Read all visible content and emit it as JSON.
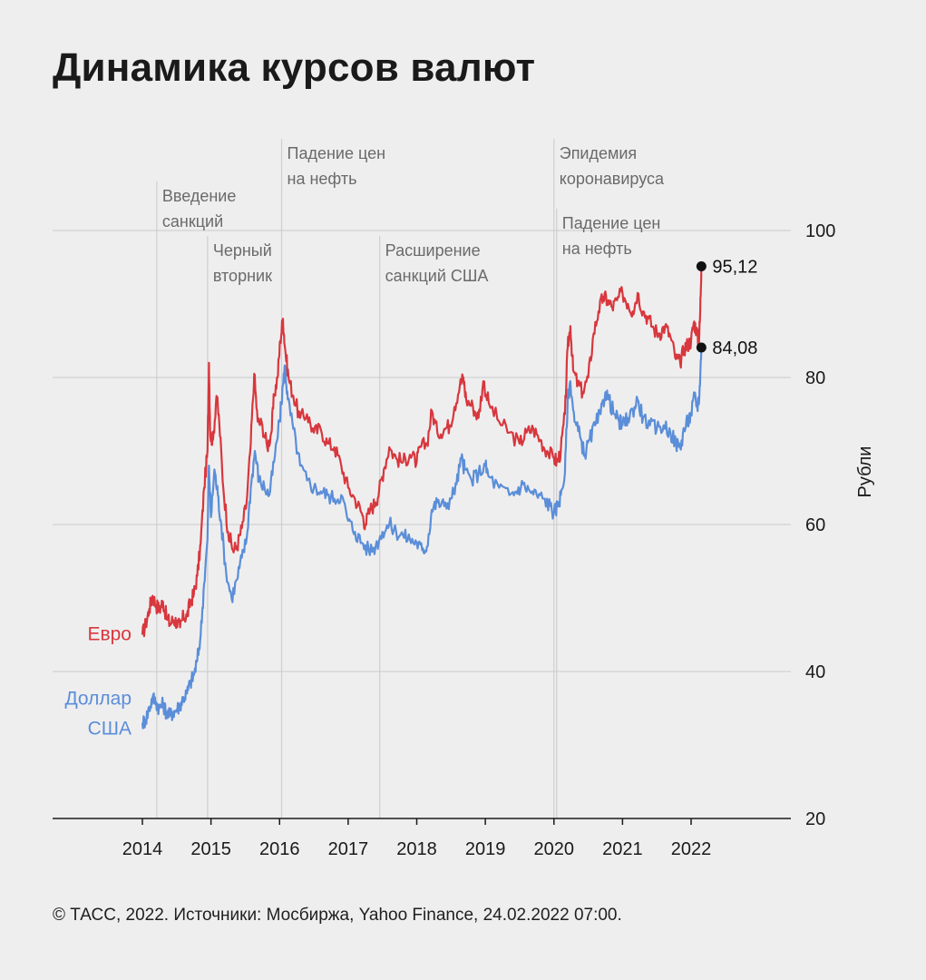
{
  "title": "Динамика курсов валют",
  "footer": "© ТАСС, 2022. Источники: Мосбиржа, Yahoo Finance, 24.02.2022 07:00.",
  "colors": {
    "euro": "#d7373d",
    "usd": "#5a8ed8",
    "grid": "#c9c9c9",
    "axis": "#1a1a1a",
    "event": "#cfcfcf",
    "event_text": "#6a6a6a",
    "background": "#efeeef"
  },
  "chart_data": {
    "type": "line",
    "title": "Динамика курсов валют",
    "ylabel": "Рубли",
    "xlabel": "",
    "ylim": [
      20,
      100
    ],
    "yticks": [
      20,
      40,
      60,
      80,
      100
    ],
    "xlim": [
      2013.0,
      2023.2
    ],
    "xticks": [
      {
        "value": 2014,
        "label": "2014"
      },
      {
        "value": 2015,
        "label": "2015"
      },
      {
        "value": 2016,
        "label": "2016"
      },
      {
        "value": 2017,
        "label": "2017"
      },
      {
        "value": 2018,
        "label": "2018"
      },
      {
        "value": 2019,
        "label": "2019"
      },
      {
        "value": 2020,
        "label": "2020"
      },
      {
        "value": 2021,
        "label": "2021"
      },
      {
        "value": 2022,
        "label": "2022"
      }
    ],
    "grid": true,
    "series": [
      {
        "name": "Евро",
        "color_key": "euro",
        "label_lines": [
          "Евро"
        ],
        "end_value": 95.12,
        "end_label": "95,12",
        "points": [
          [
            2014.0,
            45.0
          ],
          [
            2014.05,
            46.5
          ],
          [
            2014.1,
            48.5
          ],
          [
            2014.15,
            50.3
          ],
          [
            2014.2,
            49.0
          ],
          [
            2014.25,
            48.5
          ],
          [
            2014.3,
            49.5
          ],
          [
            2014.35,
            47.5
          ],
          [
            2014.4,
            46.5
          ],
          [
            2014.45,
            47.0
          ],
          [
            2014.5,
            46.8
          ],
          [
            2014.55,
            46.0
          ],
          [
            2014.6,
            47.5
          ],
          [
            2014.65,
            47.5
          ],
          [
            2014.7,
            49.5
          ],
          [
            2014.75,
            50.5
          ],
          [
            2014.8,
            53.0
          ],
          [
            2014.85,
            57.5
          ],
          [
            2014.9,
            65.0
          ],
          [
            2014.95,
            70.0
          ],
          [
            2014.97,
            82.0
          ],
          [
            2014.99,
            72.0
          ],
          [
            2015.03,
            71.5
          ],
          [
            2015.08,
            77.5
          ],
          [
            2015.12,
            74.0
          ],
          [
            2015.18,
            65.0
          ],
          [
            2015.25,
            59.0
          ],
          [
            2015.32,
            56.5
          ],
          [
            2015.38,
            57.0
          ],
          [
            2015.45,
            59.5
          ],
          [
            2015.52,
            63.0
          ],
          [
            2015.58,
            71.0
          ],
          [
            2015.63,
            80.5
          ],
          [
            2015.68,
            74.0
          ],
          [
            2015.75,
            73.5
          ],
          [
            2015.82,
            70.5
          ],
          [
            2015.88,
            72.5
          ],
          [
            2015.92,
            77.5
          ],
          [
            2015.97,
            80.0
          ],
          [
            2016.01,
            85.0
          ],
          [
            2016.05,
            88.0
          ],
          [
            2016.08,
            84.0
          ],
          [
            2016.13,
            80.0
          ],
          [
            2016.2,
            77.5
          ],
          [
            2016.3,
            74.5
          ],
          [
            2016.4,
            75.0
          ],
          [
            2016.5,
            72.5
          ],
          [
            2016.6,
            73.0
          ],
          [
            2016.7,
            71.0
          ],
          [
            2016.8,
            70.5
          ],
          [
            2016.9,
            68.0
          ],
          [
            2017.0,
            65.0
          ],
          [
            2017.1,
            63.5
          ],
          [
            2017.2,
            61.5
          ],
          [
            2017.25,
            60.0
          ],
          [
            2017.32,
            62.0
          ],
          [
            2017.4,
            63.0
          ],
          [
            2017.45,
            64.5
          ],
          [
            2017.52,
            67.5
          ],
          [
            2017.6,
            70.5
          ],
          [
            2017.7,
            69.0
          ],
          [
            2017.8,
            68.5
          ],
          [
            2017.9,
            69.5
          ],
          [
            2018.0,
            68.5
          ],
          [
            2018.05,
            70.5
          ],
          [
            2018.15,
            71.0
          ],
          [
            2018.22,
            75.5
          ],
          [
            2018.3,
            72.5
          ],
          [
            2018.4,
            73.0
          ],
          [
            2018.48,
            73.5
          ],
          [
            2018.55,
            76.0
          ],
          [
            2018.63,
            79.0
          ],
          [
            2018.68,
            80.0
          ],
          [
            2018.72,
            77.0
          ],
          [
            2018.82,
            76.0
          ],
          [
            2018.9,
            74.5
          ],
          [
            2018.97,
            79.5
          ],
          [
            2019.05,
            76.5
          ],
          [
            2019.2,
            74.0
          ],
          [
            2019.35,
            72.5
          ],
          [
            2019.5,
            71.0
          ],
          [
            2019.6,
            72.5
          ],
          [
            2019.7,
            73.0
          ],
          [
            2019.8,
            71.5
          ],
          [
            2019.9,
            70.0
          ],
          [
            2020.0,
            69.0
          ],
          [
            2020.05,
            68.5
          ],
          [
            2020.1,
            70.0
          ],
          [
            2020.16,
            75.0
          ],
          [
            2020.2,
            84.0
          ],
          [
            2020.24,
            87.0
          ],
          [
            2020.28,
            81.0
          ],
          [
            2020.35,
            79.0
          ],
          [
            2020.42,
            78.0
          ],
          [
            2020.5,
            80.0
          ],
          [
            2020.58,
            86.0
          ],
          [
            2020.65,
            89.0
          ],
          [
            2020.72,
            91.0
          ],
          [
            2020.78,
            90.5
          ],
          [
            2020.85,
            89.5
          ],
          [
            2020.92,
            90.5
          ],
          [
            2021.0,
            91.5
          ],
          [
            2021.08,
            90.0
          ],
          [
            2021.15,
            89.0
          ],
          [
            2021.22,
            91.5
          ],
          [
            2021.3,
            89.0
          ],
          [
            2021.38,
            88.0
          ],
          [
            2021.46,
            86.5
          ],
          [
            2021.54,
            86.0
          ],
          [
            2021.62,
            87.0
          ],
          [
            2021.7,
            85.5
          ],
          [
            2021.78,
            82.5
          ],
          [
            2021.84,
            82.0
          ],
          [
            2021.9,
            84.0
          ],
          [
            2021.95,
            84.5
          ],
          [
            2022.0,
            85.0
          ],
          [
            2022.04,
            87.5
          ],
          [
            2022.08,
            86.5
          ],
          [
            2022.11,
            84.5
          ],
          [
            2022.13,
            88.0
          ],
          [
            2022.15,
            95.12
          ]
        ]
      },
      {
        "name": "Доллар США",
        "color_key": "usd",
        "label_lines": [
          "Доллар",
          "США"
        ],
        "end_value": 84.08,
        "end_label": "84,08",
        "points": [
          [
            2014.0,
            33.0
          ],
          [
            2014.05,
            33.5
          ],
          [
            2014.1,
            35.0
          ],
          [
            2014.15,
            36.5
          ],
          [
            2014.2,
            35.8
          ],
          [
            2014.25,
            35.0
          ],
          [
            2014.3,
            35.5
          ],
          [
            2014.35,
            34.5
          ],
          [
            2014.4,
            34.0
          ],
          [
            2014.45,
            34.5
          ],
          [
            2014.5,
            34.8
          ],
          [
            2014.55,
            35.5
          ],
          [
            2014.6,
            36.5
          ],
          [
            2014.65,
            37.0
          ],
          [
            2014.7,
            38.5
          ],
          [
            2014.75,
            39.5
          ],
          [
            2014.8,
            41.5
          ],
          [
            2014.85,
            45.0
          ],
          [
            2014.9,
            52.0
          ],
          [
            2014.95,
            58.0
          ],
          [
            2014.97,
            68.0
          ],
          [
            2015.0,
            61.0
          ],
          [
            2015.05,
            67.5
          ],
          [
            2015.1,
            64.0
          ],
          [
            2015.15,
            60.0
          ],
          [
            2015.22,
            53.5
          ],
          [
            2015.3,
            50.0
          ],
          [
            2015.38,
            52.5
          ],
          [
            2015.45,
            55.5
          ],
          [
            2015.52,
            58.0
          ],
          [
            2015.58,
            65.0
          ],
          [
            2015.64,
            70.0
          ],
          [
            2015.7,
            66.0
          ],
          [
            2015.78,
            65.0
          ],
          [
            2015.85,
            64.0
          ],
          [
            2015.92,
            68.5
          ],
          [
            2016.0,
            74.0
          ],
          [
            2016.05,
            79.0
          ],
          [
            2016.08,
            81.5
          ],
          [
            2016.12,
            77.0
          ],
          [
            2016.2,
            73.0
          ],
          [
            2016.3,
            68.0
          ],
          [
            2016.4,
            66.0
          ],
          [
            2016.5,
            65.0
          ],
          [
            2016.6,
            64.5
          ],
          [
            2016.7,
            64.0
          ],
          [
            2016.8,
            63.5
          ],
          [
            2016.9,
            64.0
          ],
          [
            2017.0,
            60.5
          ],
          [
            2017.1,
            59.0
          ],
          [
            2017.2,
            57.5
          ],
          [
            2017.3,
            56.5
          ],
          [
            2017.4,
            57.0
          ],
          [
            2017.5,
            59.0
          ],
          [
            2017.6,
            60.0
          ],
          [
            2017.7,
            59.0
          ],
          [
            2017.8,
            58.5
          ],
          [
            2017.9,
            58.0
          ],
          [
            2018.0,
            57.5
          ],
          [
            2018.08,
            56.5
          ],
          [
            2018.15,
            57.0
          ],
          [
            2018.22,
            62.0
          ],
          [
            2018.3,
            63.0
          ],
          [
            2018.4,
            62.5
          ],
          [
            2018.5,
            63.5
          ],
          [
            2018.58,
            65.5
          ],
          [
            2018.65,
            69.0
          ],
          [
            2018.7,
            67.5
          ],
          [
            2018.8,
            66.0
          ],
          [
            2018.9,
            67.0
          ],
          [
            2019.0,
            68.0
          ],
          [
            2019.05,
            66.5
          ],
          [
            2019.2,
            65.0
          ],
          [
            2019.35,
            64.0
          ],
          [
            2019.45,
            64.5
          ],
          [
            2019.55,
            65.5
          ],
          [
            2019.65,
            64.5
          ],
          [
            2019.75,
            64.0
          ],
          [
            2019.85,
            63.5
          ],
          [
            2019.95,
            62.5
          ],
          [
            2020.0,
            61.5
          ],
          [
            2020.05,
            62.5
          ],
          [
            2020.1,
            64.0
          ],
          [
            2020.16,
            67.0
          ],
          [
            2020.2,
            77.0
          ],
          [
            2020.24,
            79.5
          ],
          [
            2020.3,
            74.0
          ],
          [
            2020.38,
            72.0
          ],
          [
            2020.45,
            69.5
          ],
          [
            2020.52,
            71.5
          ],
          [
            2020.6,
            73.5
          ],
          [
            2020.68,
            75.0
          ],
          [
            2020.75,
            78.0
          ],
          [
            2020.8,
            77.0
          ],
          [
            2020.88,
            75.0
          ],
          [
            2020.95,
            74.0
          ],
          [
            2021.0,
            73.5
          ],
          [
            2021.08,
            74.5
          ],
          [
            2021.15,
            75.5
          ],
          [
            2021.22,
            77.0
          ],
          [
            2021.3,
            74.5
          ],
          [
            2021.4,
            73.5
          ],
          [
            2021.5,
            73.0
          ],
          [
            2021.6,
            73.5
          ],
          [
            2021.7,
            72.5
          ],
          [
            2021.78,
            71.0
          ],
          [
            2021.84,
            70.5
          ],
          [
            2021.9,
            73.0
          ],
          [
            2021.95,
            74.0
          ],
          [
            2022.0,
            75.0
          ],
          [
            2022.05,
            77.5
          ],
          [
            2022.09,
            76.0
          ],
          [
            2022.12,
            77.5
          ],
          [
            2022.15,
            84.08
          ]
        ]
      }
    ],
    "annotations": [
      {
        "x": 2014.21,
        "lines": [
          "Введение",
          "санкций"
        ],
        "text_top_value": 105.2
      },
      {
        "x": 2014.95,
        "lines": [
          "Черный",
          "вторник"
        ],
        "text_top_value": 97.8
      },
      {
        "x": 2016.03,
        "lines": [
          "Падение цен",
          "на нефть"
        ],
        "text_top_value": 111.0
      },
      {
        "x": 2017.46,
        "lines": [
          "Расширение",
          "санкций США"
        ],
        "text_top_value": 97.8
      },
      {
        "x": 2020.0,
        "lines": [
          "Эпидемия",
          "коронавируса"
        ],
        "text_top_value": 111.0
      },
      {
        "x": 2020.04,
        "lines": [
          "Падение цен",
          "на нефть"
        ],
        "text_top_value": 101.5
      }
    ]
  }
}
